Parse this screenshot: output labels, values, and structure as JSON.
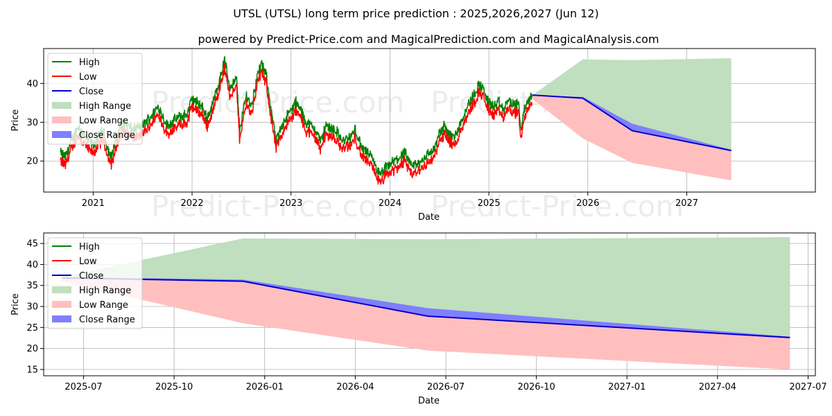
{
  "title": "UTSL (UTSL) long term price prediction : 2025,2026,2027 (Jun 12)",
  "subtitle": "powered by Predict-Price.com and MagicalPrediction.com and MagicalAnalysis.com",
  "watermark": "Predict-Price.com",
  "colors": {
    "high": "#008000",
    "low": "#ff0000",
    "close": "#0000cc",
    "high_range": "#bfdfbf",
    "low_range": "#ffbfbf",
    "close_range": "#7f7fff"
  },
  "chart_data": [
    {
      "type": "line",
      "id": "top",
      "xlabel": "Date",
      "ylabel": "Price",
      "xlim": [
        2020.5,
        2028.3
      ],
      "ylim": [
        12,
        49
      ],
      "grid": true,
      "legend_position": "top-left",
      "xticks": [
        {
          "label": "2021",
          "value": 2021
        },
        {
          "label": "2022",
          "value": 2022
        },
        {
          "label": "2023",
          "value": 2023
        },
        {
          "label": "2024",
          "value": 2024
        },
        {
          "label": "2025",
          "value": 2025
        },
        {
          "label": "2026",
          "value": 2026
        },
        {
          "label": "2027",
          "value": 2027
        }
      ],
      "yticks": [
        {
          "label": "20",
          "value": 20
        },
        {
          "label": "30",
          "value": 30
        },
        {
          "label": "40",
          "value": 40
        }
      ],
      "legend": [
        "High",
        "Low",
        "Close",
        "High Range",
        "Low Range",
        "Close Range"
      ],
      "history_keypoints": [
        [
          2020.67,
          21
        ],
        [
          2020.72,
          20
        ],
        [
          2020.78,
          24
        ],
        [
          2020.85,
          28
        ],
        [
          2020.92,
          25
        ],
        [
          2021.0,
          23
        ],
        [
          2021.1,
          27
        ],
        [
          2021.15,
          22
        ],
        [
          2021.18,
          20
        ],
        [
          2021.25,
          26
        ],
        [
          2021.3,
          29
        ],
        [
          2021.4,
          27
        ],
        [
          2021.5,
          28
        ],
        [
          2021.6,
          31
        ],
        [
          2021.66,
          33
        ],
        [
          2021.75,
          28
        ],
        [
          2021.85,
          30
        ],
        [
          2021.95,
          31
        ],
        [
          2022.0,
          35
        ],
        [
          2022.1,
          33
        ],
        [
          2022.15,
          30
        ],
        [
          2022.2,
          33
        ],
        [
          2022.28,
          40
        ],
        [
          2022.33,
          45
        ],
        [
          2022.38,
          38
        ],
        [
          2022.45,
          40
        ],
        [
          2022.48,
          27
        ],
        [
          2022.55,
          36
        ],
        [
          2022.6,
          33
        ],
        [
          2022.65,
          40
        ],
        [
          2022.7,
          44
        ],
        [
          2022.75,
          41
        ],
        [
          2022.8,
          32
        ],
        [
          2022.85,
          24
        ],
        [
          2022.92,
          29
        ],
        [
          2023.0,
          32
        ],
        [
          2023.05,
          34
        ],
        [
          2023.1,
          32
        ],
        [
          2023.15,
          29
        ],
        [
          2023.25,
          27
        ],
        [
          2023.3,
          24
        ],
        [
          2023.35,
          28
        ],
        [
          2023.45,
          27
        ],
        [
          2023.52,
          24
        ],
        [
          2023.6,
          25
        ],
        [
          2023.65,
          27
        ],
        [
          2023.72,
          22
        ],
        [
          2023.78,
          21
        ],
        [
          2023.85,
          18
        ],
        [
          2023.9,
          15
        ],
        [
          2023.95,
          17
        ],
        [
          2024.05,
          19
        ],
        [
          2024.15,
          21
        ],
        [
          2024.2,
          18
        ],
        [
          2024.28,
          18
        ],
        [
          2024.35,
          20
        ],
        [
          2024.45,
          22
        ],
        [
          2024.5,
          26
        ],
        [
          2024.55,
          28
        ],
        [
          2024.6,
          26
        ],
        [
          2024.65,
          25
        ],
        [
          2024.7,
          28
        ],
        [
          2024.78,
          33
        ],
        [
          2024.85,
          36
        ],
        [
          2024.9,
          39
        ],
        [
          2024.95,
          37
        ],
        [
          2025.0,
          34
        ],
        [
          2025.05,
          33
        ],
        [
          2025.1,
          34
        ],
        [
          2025.15,
          32
        ],
        [
          2025.2,
          35
        ],
        [
          2025.25,
          33
        ],
        [
          2025.3,
          34
        ],
        [
          2025.32,
          27
        ],
        [
          2025.36,
          32
        ],
        [
          2025.4,
          35
        ],
        [
          2025.44,
          36
        ]
      ],
      "forecast": {
        "x": [
          2025.44,
          2025.95,
          2026.45,
          2027.45
        ],
        "high_range_top": [
          37,
          46.2,
          46.0,
          46.5
        ],
        "low_range_bottom": [
          36,
          25.8,
          19.5,
          15.0
        ],
        "close": [
          37,
          36.2,
          27.8,
          22.7
        ],
        "close_range_top": [
          37,
          36.5,
          29.6,
          22.9
        ]
      }
    },
    {
      "type": "line",
      "id": "bottom",
      "xlabel": "Date",
      "ylabel": "Price",
      "xlim": [
        2025.39,
        2027.52
      ],
      "ylim": [
        13.5,
        47.5
      ],
      "grid": true,
      "legend_position": "top-left",
      "xticks": [
        {
          "label": "2025-07",
          "value": 2025.5
        },
        {
          "label": "2025-10",
          "value": 2025.75
        },
        {
          "label": "2026-01",
          "value": 2026.0
        },
        {
          "label": "2026-04",
          "value": 2026.25
        },
        {
          "label": "2026-07",
          "value": 2026.5
        },
        {
          "label": "2026-10",
          "value": 2026.75
        },
        {
          "label": "2027-01",
          "value": 2027.0
        },
        {
          "label": "2027-04",
          "value": 2027.25
        },
        {
          "label": "2027-07",
          "value": 2027.5
        }
      ],
      "yticks": [
        {
          "label": "15",
          "value": 15
        },
        {
          "label": "20",
          "value": 20
        },
        {
          "label": "25",
          "value": 25
        },
        {
          "label": "30",
          "value": 30
        },
        {
          "label": "35",
          "value": 35
        },
        {
          "label": "40",
          "value": 40
        },
        {
          "label": "45",
          "value": 45
        }
      ],
      "legend": [
        "High",
        "Low",
        "Close",
        "High Range",
        "Low Range",
        "Close Range"
      ],
      "forecast": {
        "x": [
          2025.44,
          2025.94,
          2026.45,
          2027.45
        ],
        "high_range_top": [
          37.0,
          46.2,
          46.0,
          46.5
        ],
        "low_range_bottom": [
          36.0,
          26.0,
          19.5,
          15.0
        ],
        "close": [
          36.8,
          36.0,
          27.7,
          22.6
        ],
        "close_range_top": [
          37.0,
          36.4,
          29.6,
          22.8
        ]
      }
    }
  ]
}
